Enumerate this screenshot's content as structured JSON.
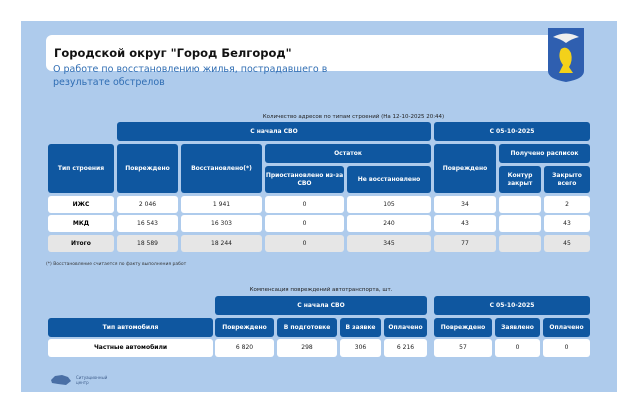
{
  "header": {
    "title": "Городской округ \"Город Белгород\"",
    "subtitle": "О работе по восстановлению жилья, пострадавшего в результате обстрелов"
  },
  "table1": {
    "caption": "Количество адресов по типам строений (На 12-10-2025 20:44)",
    "group_svo": "С начала СВО",
    "group_date": "С 05-10-2025",
    "col_type": "Тип строения",
    "col_damaged": "Повреждено",
    "col_restored": "Восстановлено(*)",
    "col_remain": "Остаток",
    "col_suspended": "Приостановлено из-за СВО",
    "col_not_restored": "Не восстановлено",
    "col_damaged2": "Повреждено",
    "col_receipts": "Получено расписок",
    "col_contour": "Контур закрыт",
    "col_closed": "Закрыто всего",
    "rows": [
      {
        "type": "ИЖС",
        "damaged": "2 046",
        "restored": "1 941",
        "suspended": "0",
        "not_restored": "105",
        "damaged2": "34",
        "contour": "",
        "closed": "2"
      },
      {
        "type": "МКД",
        "damaged": "16 543",
        "restored": "16 303",
        "suspended": "0",
        "not_restored": "240",
        "damaged2": "43",
        "contour": "",
        "closed": "43"
      },
      {
        "type": "Итого",
        "damaged": "18 589",
        "restored": "18 244",
        "suspended": "0",
        "not_restored": "345",
        "damaged2": "77",
        "contour": "",
        "closed": "45"
      }
    ],
    "footnote": "(*) Восстановление считается по факту выполнения работ"
  },
  "table2": {
    "caption": "Компенсация повреждений автотранспорта, шт.",
    "group_svo": "С начала СВО",
    "group_date": "С 05-10-2025",
    "cols": [
      "Тип автомобиля",
      "Повреждено",
      "В подготовке",
      "В заявке",
      "Оплачено",
      "Повреждено",
      "Заявлено",
      "Оплачено"
    ],
    "row": [
      "Частные автомобили",
      "6 820",
      "298",
      "306",
      "6 216",
      "57",
      "0",
      "0"
    ]
  },
  "footer": {
    "logo_text": "Ситуационный центр"
  }
}
